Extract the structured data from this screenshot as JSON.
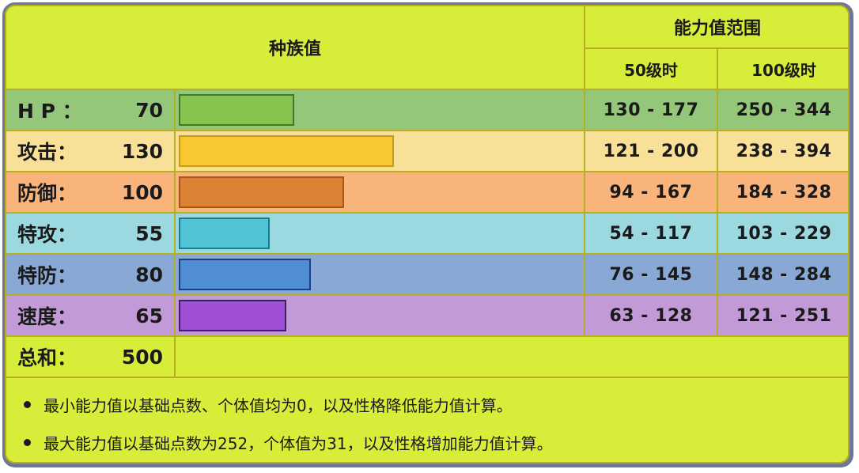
{
  "header": {
    "base_stats_title": "种族值",
    "stat_range_title": "能力值范围",
    "level50_label": "50级时",
    "level100_label": "100级时"
  },
  "rows": [
    {
      "label": "H P ：",
      "value": "70",
      "range50": "130 - 177",
      "range100": "250 - 344"
    },
    {
      "label": "攻击：",
      "value": "130",
      "range50": "121 - 200",
      "range100": "238 - 394"
    },
    {
      "label": "防御：",
      "value": "100",
      "range50": "94 - 167",
      "range100": "184 - 328"
    },
    {
      "label": "特攻：",
      "value": "55",
      "range50": "54 - 117",
      "range100": "103 - 229"
    },
    {
      "label": "特防：",
      "value": "80",
      "range50": "76 - 145",
      "range100": "148 - 284"
    },
    {
      "label": "速度：",
      "value": "65",
      "range50": "63 - 128",
      "range100": "121 - 251"
    }
  ],
  "total": {
    "label": "总和：",
    "value": "500"
  },
  "notes": [
    "最小能力值以基础点数、个体值均为0，以及性格降低能力值计算。",
    "最大能力值以基础点数为252，个体值为31，以及性格增加能力值计算。"
  ],
  "colors": {
    "background": "#d8ed3a",
    "border": "#b6b020",
    "hp_row": "#94c77a",
    "hp_bar": "#86c450",
    "atk_row": "#f8e098",
    "atk_bar": "#f8c832",
    "def_row": "#f9b47c",
    "def_bar": "#dc8234",
    "spa_row": "#9cd8e0",
    "spa_bar": "#50c4d4",
    "spd_row": "#8aa8d4",
    "spd_bar": "#508ed4",
    "spe_row": "#c39ad8",
    "spe_bar": "#a050d4"
  },
  "chart_data": {
    "type": "bar",
    "orientation": "horizontal",
    "title": "种族值",
    "categories": [
      "HP",
      "攻击",
      "防御",
      "特攻",
      "特防",
      "速度"
    ],
    "values": [
      70,
      130,
      100,
      55,
      80,
      65
    ],
    "total": 500,
    "xlim": [
      0,
      255
    ],
    "grid": false,
    "legend": "none",
    "table": {
      "columns": [
        "50级时",
        "100级时"
      ],
      "group_header": "能力值范围",
      "rows": [
        [
          "130 - 177",
          "250 - 344"
        ],
        [
          "121 - 200",
          "238 - 394"
        ],
        [
          "94 - 167",
          "184 - 328"
        ],
        [
          "54 - 117",
          "103 - 229"
        ],
        [
          "76 - 145",
          "148 - 284"
        ],
        [
          "63 - 128",
          "121 - 251"
        ]
      ]
    }
  }
}
